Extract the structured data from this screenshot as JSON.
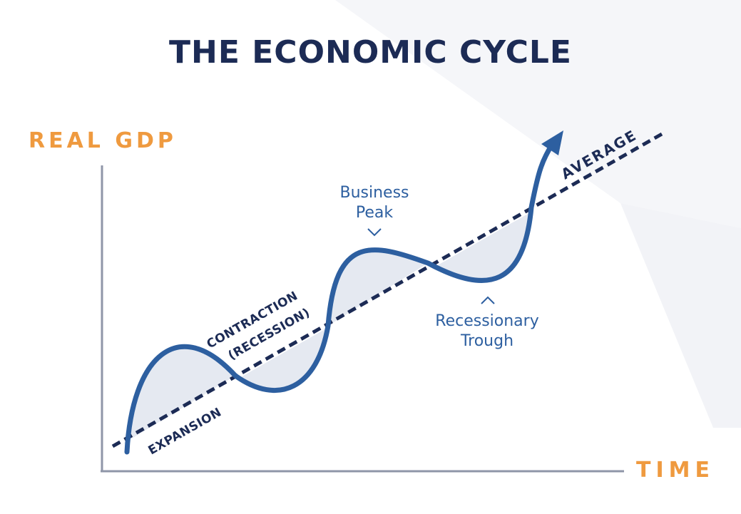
{
  "title": "THE ECONOMIC CYCLE",
  "axes": {
    "y_label": "REAL GDP",
    "x_label": "TIME"
  },
  "labels": {
    "average": "AVERAGE",
    "expansion": "EXPANSION",
    "contraction_line1": "CONTRACTION",
    "contraction_line2": "(RECESSION)",
    "peak_line1": "Business",
    "peak_line2": "Peak",
    "trough_line1": "Recessionary",
    "trough_line2": "Trough"
  },
  "colors": {
    "title": "#1c2b55",
    "axis_label": "#ef9a3f",
    "curve": "#2d5fa0",
    "trend_line": "#1c2b55",
    "axis": "#8f96a8",
    "shade": "#e5e9f1"
  }
}
